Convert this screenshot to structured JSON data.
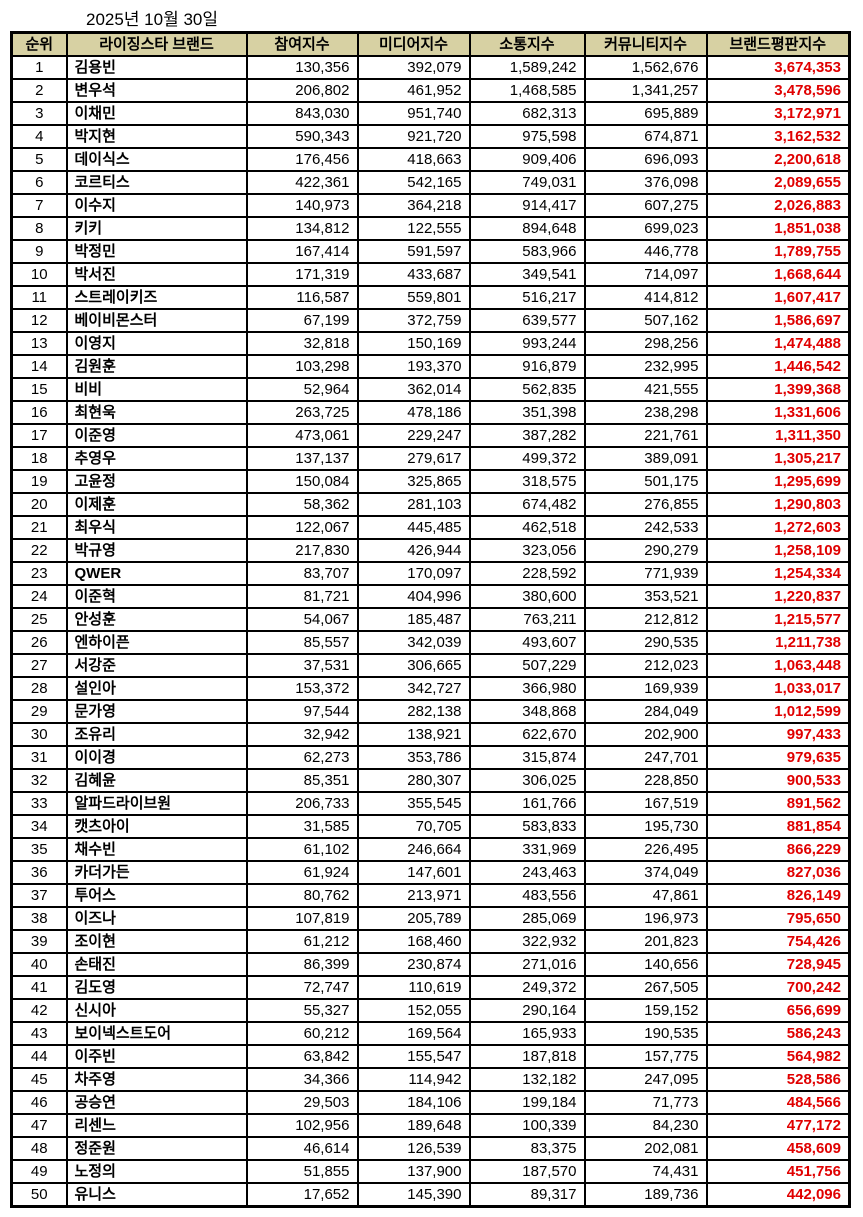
{
  "date_label": "2025년 10월 30일",
  "colors": {
    "header_bg": "#d7d1a3",
    "reputation_value_text": "#e00000",
    "grid_border": "#000000",
    "row_bg": "#ffffff"
  },
  "chart_data": {
    "type": "table",
    "title": "2025년 10월 30일 라이징스타 브랜드평판지수",
    "columns": [
      "순위",
      "라이징스타 브랜드",
      "참여지수",
      "미디어지수",
      "소통지수",
      "커뮤니티지수",
      "브랜드평판지수"
    ],
    "rows": [
      [
        "1",
        "김용빈",
        "130,356",
        "392,079",
        "1,589,242",
        "1,562,676",
        "3,674,353"
      ],
      [
        "2",
        "변우석",
        "206,802",
        "461,952",
        "1,468,585",
        "1,341,257",
        "3,478,596"
      ],
      [
        "3",
        "이채민",
        "843,030",
        "951,740",
        "682,313",
        "695,889",
        "3,172,971"
      ],
      [
        "4",
        "박지현",
        "590,343",
        "921,720",
        "975,598",
        "674,871",
        "3,162,532"
      ],
      [
        "5",
        "데이식스",
        "176,456",
        "418,663",
        "909,406",
        "696,093",
        "2,200,618"
      ],
      [
        "6",
        "코르티스",
        "422,361",
        "542,165",
        "749,031",
        "376,098",
        "2,089,655"
      ],
      [
        "7",
        "이수지",
        "140,973",
        "364,218",
        "914,417",
        "607,275",
        "2,026,883"
      ],
      [
        "8",
        "키키",
        "134,812",
        "122,555",
        "894,648",
        "699,023",
        "1,851,038"
      ],
      [
        "9",
        "박정민",
        "167,414",
        "591,597",
        "583,966",
        "446,778",
        "1,789,755"
      ],
      [
        "10",
        "박서진",
        "171,319",
        "433,687",
        "349,541",
        "714,097",
        "1,668,644"
      ],
      [
        "11",
        "스트레이키즈",
        "116,587",
        "559,801",
        "516,217",
        "414,812",
        "1,607,417"
      ],
      [
        "12",
        "베이비몬스터",
        "67,199",
        "372,759",
        "639,577",
        "507,162",
        "1,586,697"
      ],
      [
        "13",
        "이영지",
        "32,818",
        "150,169",
        "993,244",
        "298,256",
        "1,474,488"
      ],
      [
        "14",
        "김원훈",
        "103,298",
        "193,370",
        "916,879",
        "232,995",
        "1,446,542"
      ],
      [
        "15",
        "비비",
        "52,964",
        "362,014",
        "562,835",
        "421,555",
        "1,399,368"
      ],
      [
        "16",
        "최현욱",
        "263,725",
        "478,186",
        "351,398",
        "238,298",
        "1,331,606"
      ],
      [
        "17",
        "이준영",
        "473,061",
        "229,247",
        "387,282",
        "221,761",
        "1,311,350"
      ],
      [
        "18",
        "추영우",
        "137,137",
        "279,617",
        "499,372",
        "389,091",
        "1,305,217"
      ],
      [
        "19",
        "고윤정",
        "150,084",
        "325,865",
        "318,575",
        "501,175",
        "1,295,699"
      ],
      [
        "20",
        "이제훈",
        "58,362",
        "281,103",
        "674,482",
        "276,855",
        "1,290,803"
      ],
      [
        "21",
        "최우식",
        "122,067",
        "445,485",
        "462,518",
        "242,533",
        "1,272,603"
      ],
      [
        "22",
        "박규영",
        "217,830",
        "426,944",
        "323,056",
        "290,279",
        "1,258,109"
      ],
      [
        "23",
        "QWER",
        "83,707",
        "170,097",
        "228,592",
        "771,939",
        "1,254,334"
      ],
      [
        "24",
        "이준혁",
        "81,721",
        "404,996",
        "380,600",
        "353,521",
        "1,220,837"
      ],
      [
        "25",
        "안성훈",
        "54,067",
        "185,487",
        "763,211",
        "212,812",
        "1,215,577"
      ],
      [
        "26",
        "엔하이픈",
        "85,557",
        "342,039",
        "493,607",
        "290,535",
        "1,211,738"
      ],
      [
        "27",
        "서강준",
        "37,531",
        "306,665",
        "507,229",
        "212,023",
        "1,063,448"
      ],
      [
        "28",
        "설인아",
        "153,372",
        "342,727",
        "366,980",
        "169,939",
        "1,033,017"
      ],
      [
        "29",
        "문가영",
        "97,544",
        "282,138",
        "348,868",
        "284,049",
        "1,012,599"
      ],
      [
        "30",
        "조유리",
        "32,942",
        "138,921",
        "622,670",
        "202,900",
        "997,433"
      ],
      [
        "31",
        "이이경",
        "62,273",
        "353,786",
        "315,874",
        "247,701",
        "979,635"
      ],
      [
        "32",
        "김혜윤",
        "85,351",
        "280,307",
        "306,025",
        "228,850",
        "900,533"
      ],
      [
        "33",
        "알파드라이브원",
        "206,733",
        "355,545",
        "161,766",
        "167,519",
        "891,562"
      ],
      [
        "34",
        "캣츠아이",
        "31,585",
        "70,705",
        "583,833",
        "195,730",
        "881,854"
      ],
      [
        "35",
        "채수빈",
        "61,102",
        "246,664",
        "331,969",
        "226,495",
        "866,229"
      ],
      [
        "36",
        "카더가든",
        "61,924",
        "147,601",
        "243,463",
        "374,049",
        "827,036"
      ],
      [
        "37",
        "투어스",
        "80,762",
        "213,971",
        "483,556",
        "47,861",
        "826,149"
      ],
      [
        "38",
        "이즈나",
        "107,819",
        "205,789",
        "285,069",
        "196,973",
        "795,650"
      ],
      [
        "39",
        "조이현",
        "61,212",
        "168,460",
        "322,932",
        "201,823",
        "754,426"
      ],
      [
        "40",
        "손태진",
        "86,399",
        "230,874",
        "271,016",
        "140,656",
        "728,945"
      ],
      [
        "41",
        "김도영",
        "72,747",
        "110,619",
        "249,372",
        "267,505",
        "700,242"
      ],
      [
        "42",
        "신시아",
        "55,327",
        "152,055",
        "290,164",
        "159,152",
        "656,699"
      ],
      [
        "43",
        "보이넥스트도어",
        "60,212",
        "169,564",
        "165,933",
        "190,535",
        "586,243"
      ],
      [
        "44",
        "이주빈",
        "63,842",
        "155,547",
        "187,818",
        "157,775",
        "564,982"
      ],
      [
        "45",
        "차주영",
        "34,366",
        "114,942",
        "132,182",
        "247,095",
        "528,586"
      ],
      [
        "46",
        "공승연",
        "29,503",
        "184,106",
        "199,184",
        "71,773",
        "484,566"
      ],
      [
        "47",
        "리센느",
        "102,956",
        "189,648",
        "100,339",
        "84,230",
        "477,172"
      ],
      [
        "48",
        "정준원",
        "46,614",
        "126,539",
        "83,375",
        "202,081",
        "458,609"
      ],
      [
        "49",
        "노정의",
        "51,855",
        "137,900",
        "187,570",
        "74,431",
        "451,756"
      ],
      [
        "50",
        "유니스",
        "17,652",
        "145,390",
        "89,317",
        "189,736",
        "442,096"
      ]
    ]
  }
}
